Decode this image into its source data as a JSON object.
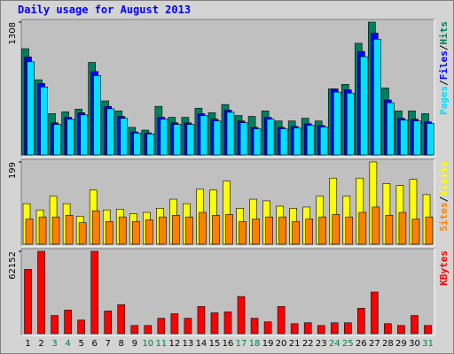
{
  "title": "Daily usage for August 2013",
  "legend_separator": "/",
  "chart_data": [
    {
      "type": "bar",
      "ylim": [
        0,
        1308
      ],
      "yticks": [
        1308
      ],
      "series": [
        {
          "name": "Pages",
          "color": "#00e0ff",
          "values": [
            917,
            669,
            300,
            352,
            394,
            780,
            454,
            360,
            215,
            206,
            352,
            300,
            300,
            386,
            334,
            420,
            317,
            257,
            352,
            257,
            266,
            292,
            275,
            618,
            609,
            968,
            1140,
            514,
            343,
            334,
            309
          ]
        },
        {
          "name": "Files",
          "color": "#0000ff",
          "values": [
            965,
            704,
            316,
            370,
            415,
            821,
            478,
            379,
            226,
            217,
            370,
            316,
            316,
            406,
            352,
            442,
            334,
            271,
            370,
            271,
            280,
            307,
            289,
            650,
            641,
            1019,
            1200,
            541,
            361,
            352,
            325
          ]
        },
        {
          "name": "Hits",
          "color": "#008060",
          "values": [
            1046,
            740,
            406,
            424,
            451,
            911,
            532,
            433,
            271,
            244,
            478,
            370,
            370,
            460,
            415,
            496,
            388,
            379,
            433,
            334,
            334,
            361,
            334,
            650,
            695,
            1100,
            1308,
            659,
            433,
            433,
            406
          ]
        }
      ]
    },
    {
      "type": "bar",
      "ylim": [
        0,
        199
      ],
      "yticks": [
        199
      ],
      "series": [
        {
          "name": "Sites",
          "color": "#ff8000",
          "values": [
            61,
            66,
            66,
            70,
            52,
            81,
            55,
            66,
            55,
            59,
            66,
            70,
            66,
            77,
            70,
            72,
            55,
            61,
            66,
            66,
            55,
            61,
            66,
            72,
            66,
            77,
            90,
            70,
            77,
            61,
            66
          ]
        },
        {
          "name": "Visits",
          "color": "#ffff00",
          "values": [
            98,
            83,
            116,
            98,
            68,
            131,
            83,
            85,
            74,
            77,
            87,
            109,
            98,
            133,
            131,
            153,
            87,
            109,
            105,
            92,
            87,
            90,
            116,
            160,
            116,
            160,
            199,
            147,
            142,
            157,
            120
          ]
        }
      ]
    },
    {
      "type": "bar",
      "ylim": [
        0,
        62152
      ],
      "yticks": [
        62152
      ],
      "categories": [
        "1",
        "2",
        "3",
        "4",
        "5",
        "6",
        "7",
        "8",
        "9",
        "10",
        "11",
        "12",
        "13",
        "14",
        "15",
        "16",
        "17",
        "18",
        "19",
        "20",
        "21",
        "22",
        "23",
        "24",
        "25",
        "26",
        "27",
        "28",
        "29",
        "30",
        "31"
      ],
      "category_colors": [
        "#000000",
        "#000000",
        "#008040",
        "#008040",
        "#000000",
        "#000000",
        "#000000",
        "#000000",
        "#000000",
        "#008040",
        "#008040",
        "#000000",
        "#000000",
        "#000000",
        "#000000",
        "#000000",
        "#008040",
        "#008040",
        "#000000",
        "#000000",
        "#000000",
        "#000000",
        "#000000",
        "#008040",
        "#008040",
        "#000000",
        "#000000",
        "#000000",
        "#000000",
        "#000000",
        "#008040"
      ],
      "series": [
        {
          "name": "KBytes",
          "color": "#ff0000",
          "values": [
            48493,
            62152,
            13660,
            17758,
            10245,
            62152,
            17075,
            21856,
            6147,
            6147,
            11611,
            15026,
            11611,
            20490,
            15709,
            16392,
            28003,
            11611,
            8879,
            20490,
            7513,
            8196,
            6147,
            8196,
            8196,
            19124,
            31418,
            7513,
            6147,
            13660,
            6147
          ]
        }
      ]
    }
  ]
}
